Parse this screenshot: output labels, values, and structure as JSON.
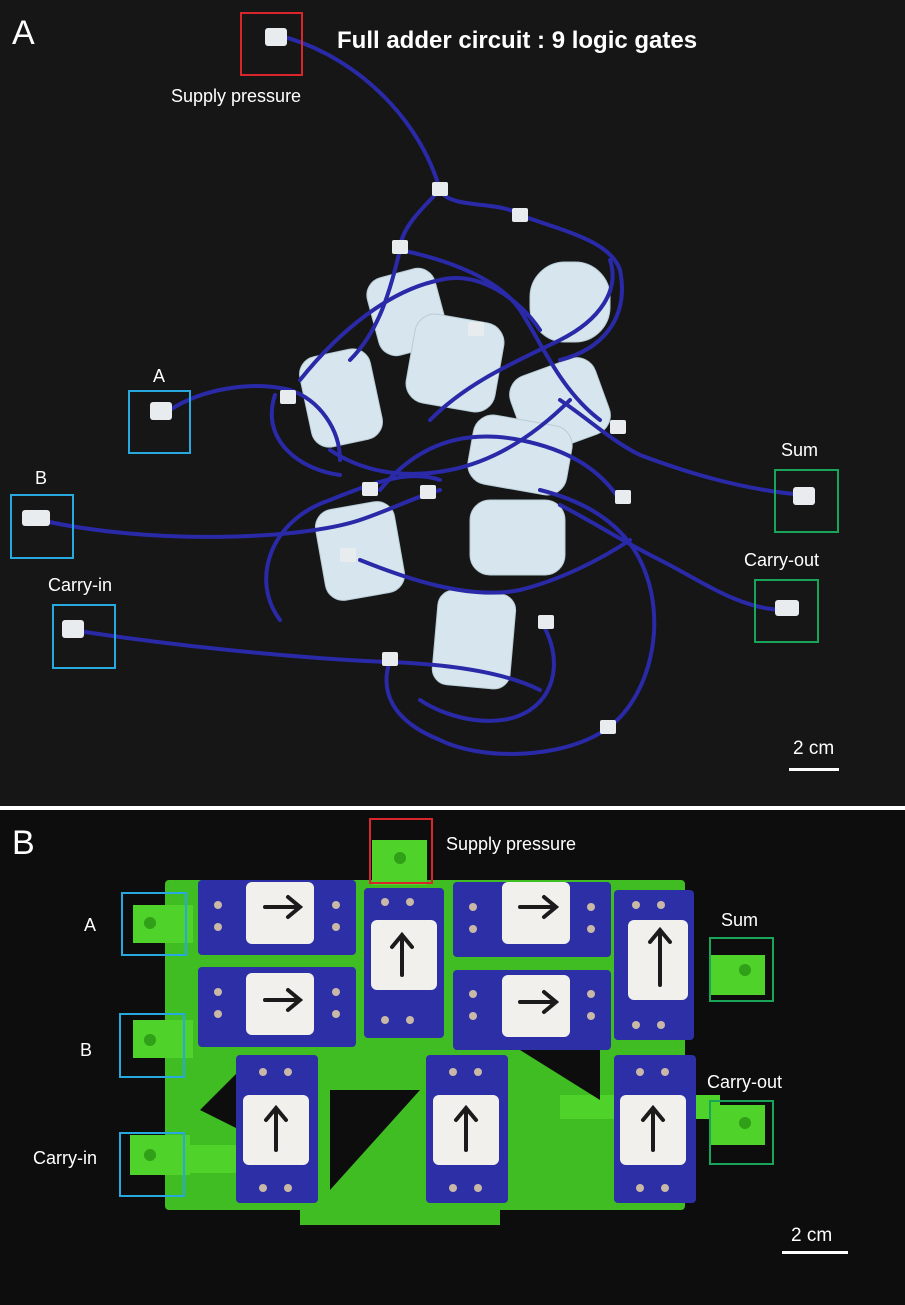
{
  "panel_a": {
    "letter": "A",
    "title": "Full adder circuit : 9 logic gates",
    "labels": {
      "supply": "Supply pressure",
      "a": "A",
      "b": "B",
      "carry_in": "Carry-in",
      "sum": "Sum",
      "carry_out": "Carry-out"
    },
    "scale": "2 cm"
  },
  "panel_b": {
    "letter": "B",
    "labels": {
      "supply": "Supply pressure",
      "a": "A",
      "b": "B",
      "carry_in": "Carry-in",
      "sum": "Sum",
      "carry_out": "Carry-out"
    },
    "scale": "2 cm"
  },
  "colors": {
    "supply_box": "#d9262a",
    "input_box": "#27a8df",
    "output_box": "#18a55a",
    "tubing": "#2a2aa8",
    "green_manifold": "#52d92a",
    "gate_blue": "#2d2fa6"
  }
}
